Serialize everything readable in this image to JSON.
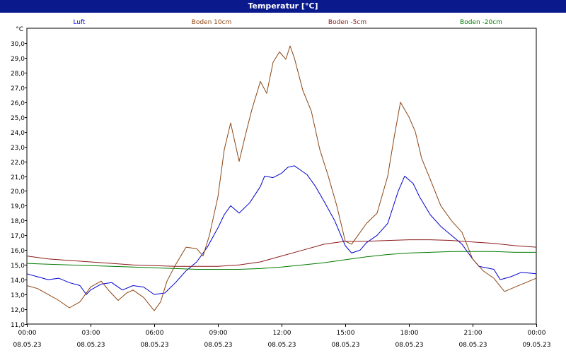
{
  "window": {
    "title": "Temperatur [°C]"
  },
  "chart_data": {
    "type": "line",
    "title": "Temperatur [°C]",
    "ylabel": "°C",
    "xlabel": "",
    "ylim": [
      11.0,
      31.0
    ],
    "xlim": [
      0,
      24
    ],
    "grid": true,
    "legend_position": "top",
    "yticks": [
      {
        "v": 11.0,
        "label": "11,0"
      },
      {
        "v": 12.0,
        "label": "12,0"
      },
      {
        "v": 13.0,
        "label": "13,0"
      },
      {
        "v": 14.0,
        "label": "14,0"
      },
      {
        "v": 15.0,
        "label": "15,0"
      },
      {
        "v": 16.0,
        "label": "16,0"
      },
      {
        "v": 17.0,
        "label": "17,0"
      },
      {
        "v": 18.0,
        "label": "18,0"
      },
      {
        "v": 19.0,
        "label": "19,0"
      },
      {
        "v": 20.0,
        "label": "20,0"
      },
      {
        "v": 21.0,
        "label": "21,0"
      },
      {
        "v": 22.0,
        "label": "22,0"
      },
      {
        "v": 23.0,
        "label": "23,0"
      },
      {
        "v": 24.0,
        "label": "24,0"
      },
      {
        "v": 25.0,
        "label": "25,0"
      },
      {
        "v": 26.0,
        "label": "26,0"
      },
      {
        "v": 27.0,
        "label": "27,0"
      },
      {
        "v": 28.0,
        "label": "28,0"
      },
      {
        "v": 29.0,
        "label": "29,0"
      },
      {
        "v": 30.0,
        "label": "30,0"
      }
    ],
    "xticks": [
      {
        "v": 0,
        "time": "00:00",
        "date": "08.05.23"
      },
      {
        "v": 3,
        "time": "03:00",
        "date": "08.05.23"
      },
      {
        "v": 6,
        "time": "06:00",
        "date": "08.05.23"
      },
      {
        "v": 9,
        "time": "09:00",
        "date": "08.05.23"
      },
      {
        "v": 12,
        "time": "12:00",
        "date": "08.05.23"
      },
      {
        "v": 15,
        "time": "15:00",
        "date": "08.05.23"
      },
      {
        "v": 18,
        "time": "18:00",
        "date": "08.05.23"
      },
      {
        "v": 21,
        "time": "21:00",
        "date": "08.05.23"
      },
      {
        "v": 24,
        "time": "00:00",
        "date": "09.05.23"
      }
    ],
    "series": [
      {
        "name": "Luft",
        "color": "#0000cc",
        "points": [
          [
            0,
            14.4
          ],
          [
            0.5,
            14.2
          ],
          [
            1,
            14.0
          ],
          [
            1.5,
            14.1
          ],
          [
            2,
            13.8
          ],
          [
            2.5,
            13.6
          ],
          [
            2.8,
            13.0
          ],
          [
            3,
            13.3
          ],
          [
            3.5,
            13.7
          ],
          [
            4,
            13.8
          ],
          [
            4.5,
            13.3
          ],
          [
            5,
            13.6
          ],
          [
            5.5,
            13.5
          ],
          [
            6,
            13.0
          ],
          [
            6.5,
            13.1
          ],
          [
            7,
            13.8
          ],
          [
            7.5,
            14.6
          ],
          [
            8,
            15.2
          ],
          [
            8.5,
            16.2
          ],
          [
            9,
            17.5
          ],
          [
            9.3,
            18.4
          ],
          [
            9.6,
            19.0
          ],
          [
            10,
            18.5
          ],
          [
            10.5,
            19.2
          ],
          [
            11,
            20.3
          ],
          [
            11.2,
            21.0
          ],
          [
            11.6,
            20.9
          ],
          [
            12,
            21.2
          ],
          [
            12.3,
            21.6
          ],
          [
            12.6,
            21.7
          ],
          [
            12.9,
            21.4
          ],
          [
            13.2,
            21.1
          ],
          [
            13.6,
            20.3
          ],
          [
            14,
            19.3
          ],
          [
            14.5,
            18.0
          ],
          [
            15,
            16.3
          ],
          [
            15.3,
            15.8
          ],
          [
            15.7,
            16.0
          ],
          [
            16,
            16.5
          ],
          [
            16.5,
            17.0
          ],
          [
            17,
            17.8
          ],
          [
            17.5,
            20.0
          ],
          [
            17.8,
            21.0
          ],
          [
            18.2,
            20.5
          ],
          [
            18.5,
            19.6
          ],
          [
            19,
            18.4
          ],
          [
            19.5,
            17.6
          ],
          [
            20,
            17.0
          ],
          [
            20.5,
            16.4
          ],
          [
            21,
            15.4
          ],
          [
            21.3,
            14.9
          ],
          [
            22,
            14.7
          ],
          [
            22.3,
            14.0
          ],
          [
            22.8,
            14.2
          ],
          [
            23.3,
            14.5
          ],
          [
            24,
            14.4
          ]
        ]
      },
      {
        "name": "Boden 10cm",
        "color": "#8b4513",
        "points": [
          [
            0,
            13.6
          ],
          [
            0.5,
            13.4
          ],
          [
            1,
            13.0
          ],
          [
            1.5,
            12.6
          ],
          [
            2,
            12.1
          ],
          [
            2.5,
            12.5
          ],
          [
            3,
            13.5
          ],
          [
            3.5,
            13.9
          ],
          [
            3.9,
            13.2
          ],
          [
            4.3,
            12.6
          ],
          [
            4.7,
            13.1
          ],
          [
            5,
            13.3
          ],
          [
            5.5,
            12.8
          ],
          [
            6,
            11.9
          ],
          [
            6.3,
            12.5
          ],
          [
            6.6,
            13.9
          ],
          [
            7,
            15.0
          ],
          [
            7.5,
            16.2
          ],
          [
            8,
            16.1
          ],
          [
            8.3,
            15.6
          ],
          [
            8.6,
            17.0
          ],
          [
            9,
            19.6
          ],
          [
            9.3,
            22.8
          ],
          [
            9.6,
            24.6
          ],
          [
            10,
            22.0
          ],
          [
            10.3,
            23.8
          ],
          [
            10.6,
            25.5
          ],
          [
            11,
            27.4
          ],
          [
            11.3,
            26.6
          ],
          [
            11.6,
            28.7
          ],
          [
            11.9,
            29.4
          ],
          [
            12.2,
            28.9
          ],
          [
            12.4,
            29.8
          ],
          [
            12.6,
            29.0
          ],
          [
            13,
            26.8
          ],
          [
            13.4,
            25.4
          ],
          [
            13.8,
            22.8
          ],
          [
            14.2,
            21.0
          ],
          [
            14.6,
            19.0
          ],
          [
            15,
            16.6
          ],
          [
            15.3,
            16.4
          ],
          [
            15.7,
            17.2
          ],
          [
            16,
            17.8
          ],
          [
            16.5,
            18.5
          ],
          [
            17,
            21.0
          ],
          [
            17.3,
            23.6
          ],
          [
            17.6,
            26.0
          ],
          [
            18,
            25.0
          ],
          [
            18.3,
            24.0
          ],
          [
            18.6,
            22.2
          ],
          [
            19,
            20.8
          ],
          [
            19.5,
            19.0
          ],
          [
            20,
            18.0
          ],
          [
            20.5,
            17.2
          ],
          [
            21,
            15.4
          ],
          [
            21.5,
            14.6
          ],
          [
            22,
            14.1
          ],
          [
            22.5,
            13.2
          ],
          [
            23,
            13.5
          ],
          [
            23.5,
            13.8
          ],
          [
            24,
            14.1
          ]
        ]
      },
      {
        "name": "Boden -5cm",
        "color": "#8b1a1a",
        "points": [
          [
            0,
            15.6
          ],
          [
            1,
            15.4
          ],
          [
            2,
            15.3
          ],
          [
            3,
            15.2
          ],
          [
            4,
            15.1
          ],
          [
            5,
            15.0
          ],
          [
            6,
            14.95
          ],
          [
            7,
            14.9
          ],
          [
            8,
            14.9
          ],
          [
            9,
            14.9
          ],
          [
            10,
            15.0
          ],
          [
            11,
            15.2
          ],
          [
            12,
            15.6
          ],
          [
            13,
            16.0
          ],
          [
            14,
            16.4
          ],
          [
            15,
            16.6
          ],
          [
            16,
            16.6
          ],
          [
            17,
            16.65
          ],
          [
            18,
            16.7
          ],
          [
            19,
            16.7
          ],
          [
            20,
            16.65
          ],
          [
            21,
            16.55
          ],
          [
            22,
            16.45
          ],
          [
            23,
            16.3
          ],
          [
            24,
            16.2
          ]
        ]
      },
      {
        "name": "Boden -20cm",
        "color": "#007a00",
        "points": [
          [
            0,
            15.1
          ],
          [
            1,
            15.05
          ],
          [
            2,
            15.0
          ],
          [
            3,
            14.95
          ],
          [
            4,
            14.9
          ],
          [
            5,
            14.85
          ],
          [
            6,
            14.8
          ],
          [
            7,
            14.75
          ],
          [
            8,
            14.7
          ],
          [
            9,
            14.7
          ],
          [
            10,
            14.7
          ],
          [
            11,
            14.75
          ],
          [
            12,
            14.85
          ],
          [
            13,
            15.0
          ],
          [
            14,
            15.15
          ],
          [
            15,
            15.35
          ],
          [
            16,
            15.55
          ],
          [
            17,
            15.7
          ],
          [
            18,
            15.8
          ],
          [
            19,
            15.85
          ],
          [
            20,
            15.9
          ],
          [
            21,
            15.9
          ],
          [
            22,
            15.9
          ],
          [
            23,
            15.85
          ],
          [
            24,
            15.85
          ]
        ]
      }
    ]
  }
}
